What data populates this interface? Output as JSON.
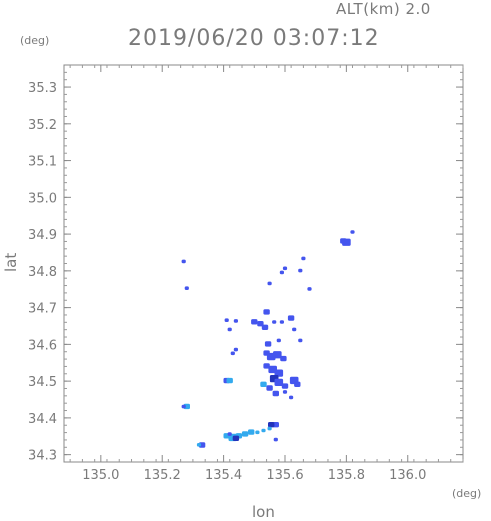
{
  "header": {
    "alt_label": "ALT(km) 2.0",
    "timestamp": "2019/06/20 03:07:12"
  },
  "chart_data": {
    "type": "scatter",
    "title": "2019/06/20 03:07:12",
    "xlabel": "lon",
    "ylabel": "lat",
    "xunit": "(deg)",
    "yunit": "(deg)",
    "xlim": [
      134.88,
      136.18
    ],
    "ylim": [
      34.28,
      35.36
    ],
    "xticks": [
      135.0,
      135.2,
      135.4,
      135.6,
      135.8,
      136.0
    ],
    "xtick_labels": [
      "135.0",
      "135.2",
      "135.4",
      "135.6",
      "135.8",
      "136.0"
    ],
    "yticks": [
      34.3,
      34.4,
      34.5,
      34.6,
      34.7,
      34.8,
      34.9,
      35.0,
      35.1,
      35.2,
      35.3
    ],
    "ytick_labels": [
      "34.3",
      "34.4",
      "34.5",
      "34.6",
      "34.7",
      "34.8",
      "34.9",
      "35.0",
      "35.1",
      "35.2",
      "35.3"
    ],
    "grid": false,
    "colors": {
      "echo_main": "#4455ee",
      "echo_light": "#33aaee",
      "echo_dark": "#2233bb"
    },
    "points": [
      {
        "x": 135.8,
        "y": 34.876,
        "s": 3,
        "c": "echo_main"
      },
      {
        "x": 135.79,
        "y": 34.88,
        "s": 2,
        "c": "echo_main"
      },
      {
        "x": 135.82,
        "y": 34.905,
        "s": 1,
        "c": "echo_main"
      },
      {
        "x": 135.27,
        "y": 34.825,
        "s": 1,
        "c": "echo_main"
      },
      {
        "x": 135.28,
        "y": 34.752,
        "s": 1,
        "c": "echo_main"
      },
      {
        "x": 135.6,
        "y": 34.806,
        "s": 1,
        "c": "echo_main"
      },
      {
        "x": 135.59,
        "y": 34.795,
        "s": 1,
        "c": "echo_main"
      },
      {
        "x": 135.65,
        "y": 34.8,
        "s": 1,
        "c": "echo_main"
      },
      {
        "x": 135.66,
        "y": 34.833,
        "s": 1,
        "c": "echo_main"
      },
      {
        "x": 135.55,
        "y": 34.765,
        "s": 1,
        "c": "echo_main"
      },
      {
        "x": 135.68,
        "y": 34.75,
        "s": 1,
        "c": "echo_main"
      },
      {
        "x": 135.54,
        "y": 34.687,
        "s": 2,
        "c": "echo_main"
      },
      {
        "x": 135.41,
        "y": 34.665,
        "s": 1,
        "c": "echo_main"
      },
      {
        "x": 135.44,
        "y": 34.663,
        "s": 1,
        "c": "echo_main"
      },
      {
        "x": 135.42,
        "y": 34.64,
        "s": 1,
        "c": "echo_main"
      },
      {
        "x": 135.5,
        "y": 34.66,
        "s": 2,
        "c": "echo_main"
      },
      {
        "x": 135.52,
        "y": 34.655,
        "s": 2,
        "c": "echo_main"
      },
      {
        "x": 135.535,
        "y": 34.645,
        "s": 2,
        "c": "echo_main"
      },
      {
        "x": 135.565,
        "y": 34.66,
        "s": 1,
        "c": "echo_main"
      },
      {
        "x": 135.59,
        "y": 34.66,
        "s": 1,
        "c": "echo_main"
      },
      {
        "x": 135.62,
        "y": 34.67,
        "s": 2,
        "c": "echo_main"
      },
      {
        "x": 135.63,
        "y": 34.64,
        "s": 1,
        "c": "echo_main"
      },
      {
        "x": 135.65,
        "y": 34.61,
        "s": 1,
        "c": "echo_main"
      },
      {
        "x": 135.545,
        "y": 34.6,
        "s": 2,
        "c": "echo_main"
      },
      {
        "x": 135.58,
        "y": 34.61,
        "s": 1,
        "c": "echo_main"
      },
      {
        "x": 135.44,
        "y": 34.585,
        "s": 1,
        "c": "echo_main"
      },
      {
        "x": 135.43,
        "y": 34.575,
        "s": 1,
        "c": "echo_main"
      },
      {
        "x": 135.54,
        "y": 34.575,
        "s": 2,
        "c": "echo_main"
      },
      {
        "x": 135.555,
        "y": 34.565,
        "s": 3,
        "c": "echo_main"
      },
      {
        "x": 135.575,
        "y": 34.57,
        "s": 3,
        "c": "echo_main"
      },
      {
        "x": 135.595,
        "y": 34.56,
        "s": 2,
        "c": "echo_main"
      },
      {
        "x": 135.54,
        "y": 34.54,
        "s": 2,
        "c": "echo_main"
      },
      {
        "x": 135.56,
        "y": 34.53,
        "s": 3,
        "c": "echo_main"
      },
      {
        "x": 135.58,
        "y": 34.52,
        "s": 3,
        "c": "echo_main"
      },
      {
        "x": 135.565,
        "y": 34.505,
        "s": 3,
        "c": "echo_dark"
      },
      {
        "x": 135.58,
        "y": 34.495,
        "s": 3,
        "c": "echo_main"
      },
      {
        "x": 135.6,
        "y": 34.485,
        "s": 2,
        "c": "echo_main"
      },
      {
        "x": 135.55,
        "y": 34.48,
        "s": 2,
        "c": "echo_main"
      },
      {
        "x": 135.53,
        "y": 34.49,
        "s": 2,
        "c": "echo_light"
      },
      {
        "x": 135.63,
        "y": 34.5,
        "s": 3,
        "c": "echo_main"
      },
      {
        "x": 135.64,
        "y": 34.49,
        "s": 2,
        "c": "echo_main"
      },
      {
        "x": 135.57,
        "y": 34.465,
        "s": 2,
        "c": "echo_main"
      },
      {
        "x": 135.6,
        "y": 34.47,
        "s": 1,
        "c": "echo_main"
      },
      {
        "x": 135.62,
        "y": 34.455,
        "s": 1,
        "c": "echo_main"
      },
      {
        "x": 135.41,
        "y": 34.5,
        "s": 2,
        "c": "echo_main"
      },
      {
        "x": 135.42,
        "y": 34.5,
        "s": 2,
        "c": "echo_light"
      },
      {
        "x": 135.28,
        "y": 34.43,
        "s": 2,
        "c": "echo_light"
      },
      {
        "x": 135.27,
        "y": 34.43,
        "s": 1,
        "c": "echo_main"
      },
      {
        "x": 135.57,
        "y": 34.38,
        "s": 2,
        "c": "echo_main"
      },
      {
        "x": 135.555,
        "y": 34.38,
        "s": 2,
        "c": "echo_dark"
      },
      {
        "x": 135.41,
        "y": 34.35,
        "s": 2,
        "c": "echo_light"
      },
      {
        "x": 135.43,
        "y": 34.345,
        "s": 3,
        "c": "echo_light"
      },
      {
        "x": 135.45,
        "y": 34.35,
        "s": 2,
        "c": "echo_light"
      },
      {
        "x": 135.47,
        "y": 34.355,
        "s": 2,
        "c": "echo_light"
      },
      {
        "x": 135.49,
        "y": 34.36,
        "s": 2,
        "c": "echo_light"
      },
      {
        "x": 135.51,
        "y": 34.36,
        "s": 1,
        "c": "echo_light"
      },
      {
        "x": 135.53,
        "y": 34.365,
        "s": 1,
        "c": "echo_light"
      },
      {
        "x": 135.55,
        "y": 34.37,
        "s": 1,
        "c": "echo_light"
      },
      {
        "x": 135.42,
        "y": 34.355,
        "s": 1,
        "c": "echo_main"
      },
      {
        "x": 135.44,
        "y": 34.343,
        "s": 2,
        "c": "echo_dark"
      },
      {
        "x": 135.33,
        "y": 34.325,
        "s": 2,
        "c": "echo_main"
      },
      {
        "x": 135.32,
        "y": 34.326,
        "s": 1,
        "c": "echo_light"
      },
      {
        "x": 135.57,
        "y": 34.34,
        "s": 1,
        "c": "echo_main"
      }
    ]
  }
}
